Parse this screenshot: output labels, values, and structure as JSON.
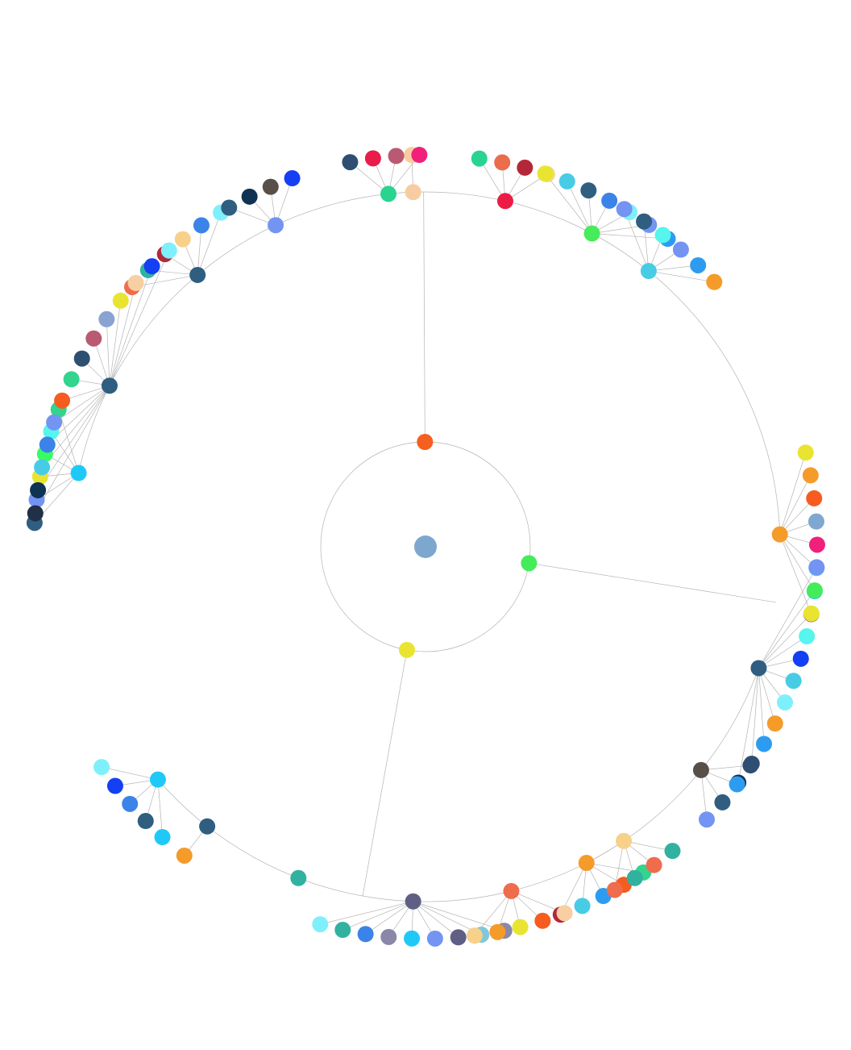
{
  "diagram": {
    "type": "radial-tree",
    "node_palette": [
      "#f5d59b",
      "#ef6c4c",
      "#31b2a0",
      "#b32839",
      "#2d9cf0",
      "#2f5e80",
      "#3b83e8",
      "#33d48d",
      "#45ec5a",
      "#1f3047",
      "#f59d2f",
      "#e9e432",
      "#f7d08a",
      "#48cce6",
      "#1fc9f7",
      "#7394f3",
      "#b95a72",
      "#6e7fa6",
      "#7ff0fb",
      "#0f3352",
      "#19d693",
      "#5b5a58",
      "#143ff5",
      "#e81d4a",
      "#f1207a",
      "#7fa8d0",
      "#f8cea3",
      "#f65c20",
      "#6f8baa",
      "#584f48",
      "#7c8bb9",
      "#ea5a83",
      "#39fb64",
      "#2e4f72",
      "#f49b2a",
      "#56f5ee",
      "#c33242",
      "#89a3d2"
    ],
    "root": {
      "label": "",
      "color": "#7da7cf"
    },
    "branches": [
      {
        "color": "#f55f1f",
        "children": [
          {
            "color": "#f8cca1",
            "children": [
              {
                "color": "#f8cca1"
              }
            ]
          },
          {
            "color": "#ec1d44",
            "children": [
              {
                "color": "#28d490"
              },
              {
                "color": "#ea6d4c"
              },
              {
                "color": "#b32839"
              },
              {
                "color": "#f6d88b"
              }
            ]
          },
          {
            "color": "#47ec5a",
            "children": [
              {
                "color": "#e9e432"
              },
              {
                "color": "#48cce6"
              },
              {
                "color": "#2f5e80"
              },
              {
                "color": "#3b83e8"
              },
              {
                "color": "#7ff0fb"
              },
              {
                "color": "#7394f3"
              },
              {
                "color": "#2d9cf0"
              }
            ]
          },
          {
            "color": "#48cce6",
            "children": [
              {
                "color": "#7394f3"
              },
              {
                "color": "#2f5e80"
              },
              {
                "color": "#56f5ee"
              },
              {
                "color": "#7394f3"
              },
              {
                "color": "#2d9cf0"
              },
              {
                "color": "#f49b2a"
              }
            ]
          },
          {
            "color": "#f49b2a",
            "children": [
              {
                "color": "#e9e432"
              },
              {
                "color": "#f49b2a"
              },
              {
                "color": "#f65c20"
              },
              {
                "color": "#7fa8d0"
              },
              {
                "color": "#f1207a"
              },
              {
                "color": "#48cce6"
              },
              {
                "color": "#1fc9f7"
              },
              {
                "color": "#b95a72"
              }
            ]
          },
          {
            "color": "#2f5e80",
            "children": [
              {
                "color": "#ef6c4c"
              },
              {
                "color": "#31b2a0"
              },
              {
                "color": "#b32839"
              },
              {
                "color": "#f7d08a"
              },
              {
                "color": "#3b83e8"
              },
              {
                "color": "#7ff0fb"
              }
            ]
          },
          {
            "color": "#1fc9f7",
            "children": [
              {
                "color": "#2f5e80"
              },
              {
                "color": "#7394f3"
              },
              {
                "color": "#e9e432"
              },
              {
                "color": "#39fb64"
              },
              {
                "color": "#56f5ee"
              },
              {
                "color": "#33d48d"
              }
            ]
          },
          {
            "color": "#2f5e80",
            "children": [
              {
                "color": "#1f3047"
              },
              {
                "color": "#0f3352"
              },
              {
                "color": "#48cce6"
              },
              {
                "color": "#3b83e8"
              },
              {
                "color": "#7394f3"
              },
              {
                "color": "#f65c20"
              },
              {
                "color": "#33d48d"
              },
              {
                "color": "#2e4f72"
              },
              {
                "color": "#b95a72"
              },
              {
                "color": "#89a3d2"
              },
              {
                "color": "#e9e432"
              },
              {
                "color": "#f8cea3"
              },
              {
                "color": "#143ff5"
              },
              {
                "color": "#7ff0fb"
              }
            ]
          },
          {
            "color": "#7394f3",
            "children": [
              {
                "color": "#2f5e80"
              },
              {
                "color": "#0f3352"
              },
              {
                "color": "#584f48"
              },
              {
                "color": "#143ff5"
              }
            ]
          },
          {
            "color": "#28d490",
            "children": [
              {
                "color": "#2e4f72"
              },
              {
                "color": "#e81d4a"
              },
              {
                "color": "#b95a72"
              },
              {
                "color": "#f1207a"
              }
            ]
          }
        ]
      },
      {
        "color": "#45ec5a",
        "children": [
          {
            "color": "#2f5e80",
            "children": [
              {
                "color": "#7394f3"
              },
              {
                "color": "#45ec5a"
              },
              {
                "color": "#e9e432"
              },
              {
                "color": "#56f5ee"
              },
              {
                "color": "#143ff5"
              },
              {
                "color": "#48cce6"
              },
              {
                "color": "#7ff0fb"
              },
              {
                "color": "#f49b2a"
              },
              {
                "color": "#2d9cf0"
              },
              {
                "color": "#2e4f72"
              },
              {
                "color": "#0f3352"
              }
            ]
          },
          {
            "color": "#584f48",
            "children": [
              {
                "color": "#2e4f72"
              },
              {
                "color": "#2d9cf0"
              },
              {
                "color": "#2f5e80"
              },
              {
                "color": "#7394f3"
              }
            ]
          },
          {
            "color": "#f49b2a",
            "children": [
              {
                "color": "#33d48d"
              },
              {
                "color": "#f65c20"
              },
              {
                "color": "#2d9cf0"
              },
              {
                "color": "#48cce6"
              },
              {
                "color": "#b32839"
              }
            ]
          }
        ]
      },
      {
        "color": "#e9e432",
        "children": [
          {
            "color": "#5f5f85",
            "children": [
              {
                "color": "#8a87a8"
              },
              {
                "color": "#7fc7db"
              },
              {
                "color": "#5f5f85"
              },
              {
                "color": "#7394f3"
              },
              {
                "color": "#1fc9f7"
              },
              {
                "color": "#8a87a8"
              },
              {
                "color": "#3b83e8"
              },
              {
                "color": "#31b2a0"
              },
              {
                "color": "#7ff0fb"
              }
            ]
          },
          {
            "color": "#31b2a0",
            "children": []
          },
          {
            "color": "#ef6c4c",
            "children": [
              {
                "color": "#f8cea3"
              },
              {
                "color": "#f65c20"
              },
              {
                "color": "#e9e432"
              },
              {
                "color": "#f49b2a"
              },
              {
                "color": "#f7d08a"
              }
            ]
          },
          {
            "color": "#f7d08a",
            "children": [
              {
                "color": "#31b2a0"
              },
              {
                "color": "#ef6c4c"
              },
              {
                "color": "#31b2a0"
              },
              {
                "color": "#ef6c4c"
              }
            ]
          },
          {
            "color": "#2f5e80",
            "children": [
              {
                "color": "#f49b2a"
              }
            ]
          },
          {
            "color": "#1fc9f7",
            "children": [
              {
                "color": "#1fc9f7"
              },
              {
                "color": "#2f5e80"
              },
              {
                "color": "#3b83e8"
              },
              {
                "color": "#143ff5"
              },
              {
                "color": "#7ff0fb"
              }
            ]
          }
        ]
      }
    ]
  }
}
